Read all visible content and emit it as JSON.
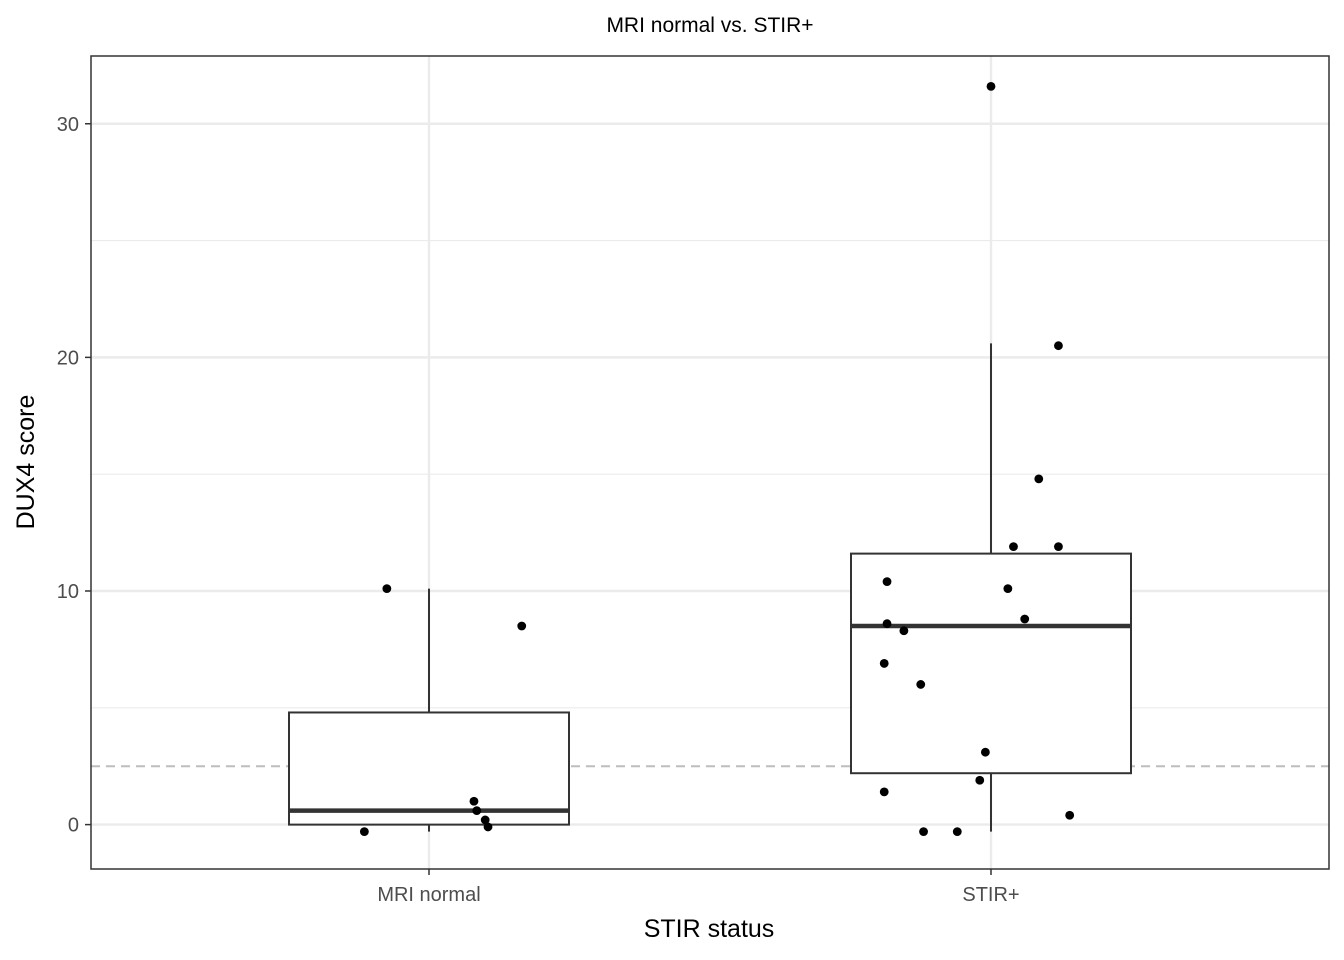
{
  "chart_data": {
    "type": "box",
    "title": "MRI normal vs. STIR+",
    "xlabel": "STIR status",
    "ylabel": "DUX4 score",
    "categories": [
      "MRI normal",
      "STIR+"
    ],
    "ylim": [
      -1.9,
      32.9
    ],
    "yticks": [
      0,
      10,
      20,
      30
    ],
    "grid": true,
    "reference_line": {
      "y": 2.5,
      "style": "dashed",
      "color": "#bdbdbd"
    },
    "boxes": [
      {
        "category": "MRI normal",
        "lower_whisker": -0.3,
        "q1": 0.0,
        "median": 0.6,
        "q3": 4.8,
        "upper_whisker": 10.1
      },
      {
        "category": "STIR+",
        "lower_whisker": -0.3,
        "q1": 2.2,
        "median": 8.5,
        "q3": 11.6,
        "upper_whisker": 20.6
      }
    ],
    "points": [
      {
        "category": "MRI normal",
        "y": 10.1,
        "jitter": -0.15
      },
      {
        "category": "MRI normal",
        "y": 8.5,
        "jitter": 0.33
      },
      {
        "category": "MRI normal",
        "y": 1.0,
        "jitter": 0.16
      },
      {
        "category": "MRI normal",
        "y": 0.6,
        "jitter": 0.17
      },
      {
        "category": "MRI normal",
        "y": 0.2,
        "jitter": 0.2
      },
      {
        "category": "MRI normal",
        "y": -0.1,
        "jitter": 0.21
      },
      {
        "category": "MRI normal",
        "y": -0.3,
        "jitter": -0.23
      },
      {
        "category": "STIR+",
        "y": 31.6,
        "jitter": 0.0
      },
      {
        "category": "STIR+",
        "y": 20.5,
        "jitter": 0.24
      },
      {
        "category": "STIR+",
        "y": 14.8,
        "jitter": 0.17
      },
      {
        "category": "STIR+",
        "y": 11.9,
        "jitter": 0.08
      },
      {
        "category": "STIR+",
        "y": 11.9,
        "jitter": 0.24
      },
      {
        "category": "STIR+",
        "y": 10.4,
        "jitter": -0.37
      },
      {
        "category": "STIR+",
        "y": 10.1,
        "jitter": 0.06
      },
      {
        "category": "STIR+",
        "y": 8.8,
        "jitter": 0.12
      },
      {
        "category": "STIR+",
        "y": 8.6,
        "jitter": -0.37
      },
      {
        "category": "STIR+",
        "y": 8.3,
        "jitter": -0.31
      },
      {
        "category": "STIR+",
        "y": 6.9,
        "jitter": -0.38
      },
      {
        "category": "STIR+",
        "y": 6.0,
        "jitter": -0.25
      },
      {
        "category": "STIR+",
        "y": 3.1,
        "jitter": -0.02
      },
      {
        "category": "STIR+",
        "y": 1.9,
        "jitter": -0.04
      },
      {
        "category": "STIR+",
        "y": 1.4,
        "jitter": -0.38
      },
      {
        "category": "STIR+",
        "y": 0.4,
        "jitter": 0.28
      },
      {
        "category": "STIR+",
        "y": -0.3,
        "jitter": -0.24
      },
      {
        "category": "STIR+",
        "y": -0.3,
        "jitter": -0.12
      }
    ],
    "colors": {
      "box_stroke": "#333333",
      "point": "#000000",
      "grid": "#ebebeb",
      "panel_border": "#333333"
    }
  }
}
